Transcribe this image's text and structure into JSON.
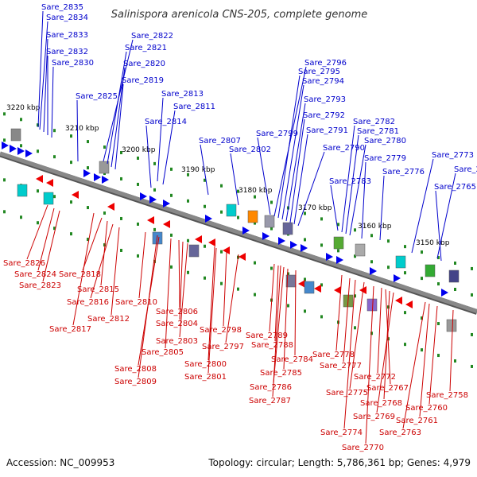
{
  "title": "Salinispora arenicola CNS-205, complete genome",
  "footer": {
    "accession": "Accession: NC_009953",
    "summary": "Topology: circular; Length: 5,786,361 bp; Genes: 4,979"
  },
  "kbp_labels": [
    "3220 kbp",
    "3210 kbp",
    "3200 kbp",
    "3190 kbp",
    "3180 kbp",
    "3170 kbp",
    "3160 kbp",
    "3150 kbp"
  ],
  "top_labels": [
    "Sare_2835",
    "Sare_2834",
    "Sare_2833",
    "Sare_2832",
    "Sare_2830",
    "Sare_2825",
    "Sare_2822",
    "Sare_2821",
    "Sare_2820",
    "Sare_2819",
    "Sare_2813",
    "Sare_2811",
    "Sare_2814",
    "Sare_2807",
    "Sare_2802",
    "Sare_2799",
    "Sare_2796",
    "Sare_2795",
    "Sare_2794",
    "Sare_2793",
    "Sare_2792",
    "Sare_2791",
    "Sare_2790",
    "Sare_2783",
    "Sare_2782",
    "Sare_2781",
    "Sare_2780",
    "Sare_2779",
    "Sare_2776",
    "Sare_2773",
    "Sare_2766",
    "Sare_2765"
  ],
  "bottom_labels": [
    "Sare_2826",
    "Sare_2824",
    "Sare_2823",
    "Sare_2818",
    "Sare_2815",
    "Sare_2816",
    "Sare_2812",
    "Sare_2817",
    "Sare_2810",
    "Sare_2806",
    "Sare_2804",
    "Sare_2803",
    "Sare_2805",
    "Sare_2808",
    "Sare_2809",
    "Sare_2801",
    "Sare_2800",
    "Sare_2798",
    "Sare_2797",
    "Sare_2789",
    "Sare_2788",
    "Sare_2784",
    "Sare_2785",
    "Sare_2786",
    "Sare_2787",
    "Sare_2778",
    "Sare_2777",
    "Sare_2775",
    "Sare_2774",
    "Sare_2772",
    "Sare_2767",
    "Sare_2768",
    "Sare_2769",
    "Sare_2770",
    "Sare_2763",
    "Sare_2761",
    "Sare_2760",
    "Sare_2758"
  ],
  "colors": {
    "forward_gene": "#0000ee",
    "reverse_gene": "#ee0000",
    "backbone": "#888888",
    "tick": "#228822",
    "top_label": "#0000cc",
    "bottom_label": "#cc0000"
  }
}
